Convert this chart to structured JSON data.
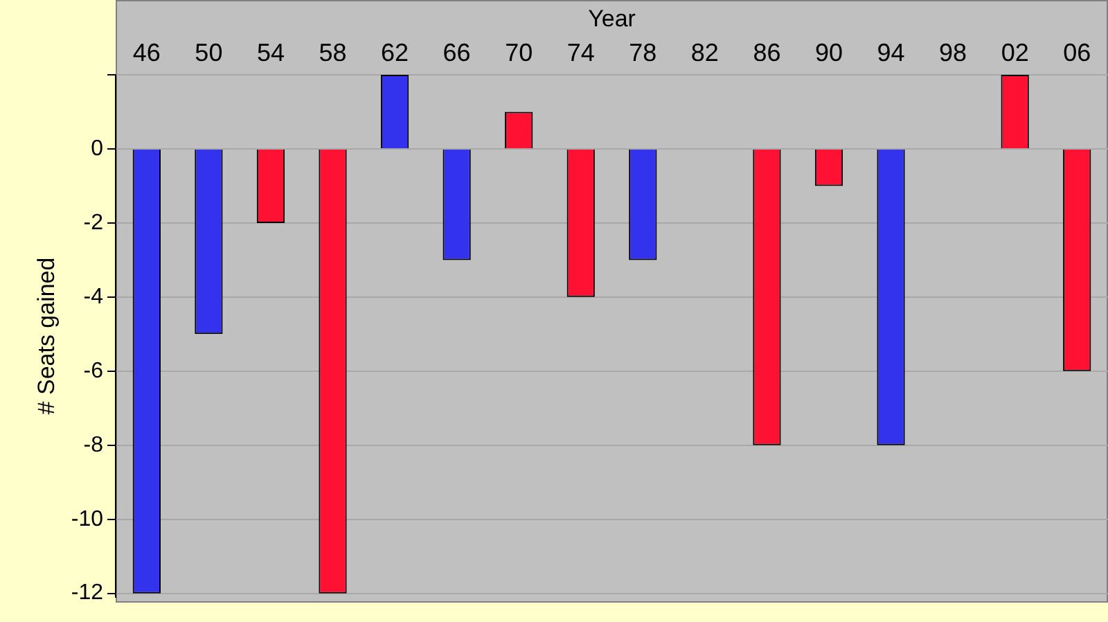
{
  "chart_data": {
    "type": "bar",
    "xlabel": "Year",
    "ylabel": "# Seats gained",
    "categories": [
      "46",
      "50",
      "54",
      "58",
      "62",
      "66",
      "70",
      "74",
      "78",
      "82",
      "86",
      "90",
      "94",
      "98",
      "02",
      "06"
    ],
    "values": [
      -12,
      -5,
      -2,
      -12,
      2,
      -3,
      1,
      -4,
      -3,
      0,
      -8,
      -1,
      -8,
      0,
      2,
      -6
    ],
    "colors": [
      "#3333ee",
      "#3333ee",
      "#ff1133",
      "#ff1133",
      "#3333ee",
      "#3333ee",
      "#ff1133",
      "#ff1133",
      "#3333ee",
      "#ff1133",
      "#ff1133",
      "#ff1133",
      "#3333ee",
      "#ff1133",
      "#ff1133",
      "#ff1133"
    ],
    "ylim": [
      -12.1,
      2
    ],
    "yticks": [
      -12,
      -10,
      -8,
      -6,
      -4,
      -2,
      0,
      {
        "value": 2,
        "label": null
      }
    ],
    "grid": "y",
    "legend": false
  }
}
